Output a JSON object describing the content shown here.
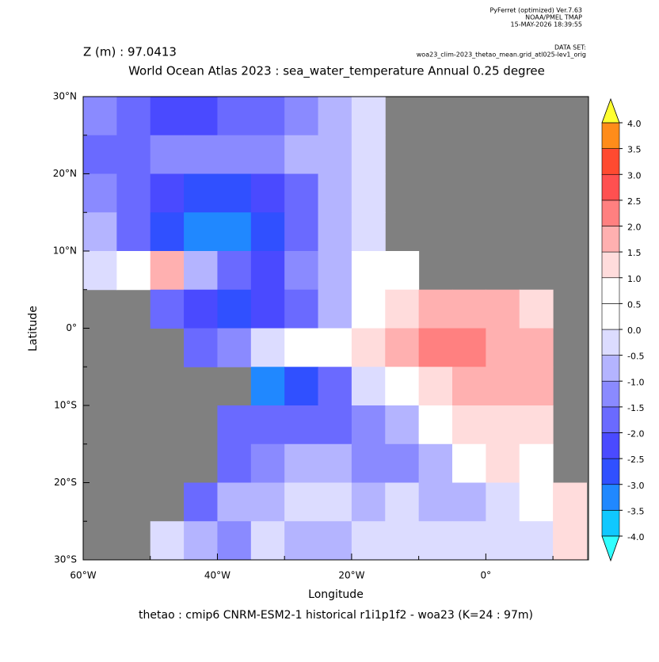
{
  "chart_data": {
    "type": "field",
    "header": {
      "program": "PyFerret (optimized) Ver.7.63",
      "org": "NOAA/PMEL TMAP",
      "date": "15-MAY-2026 18:39:55",
      "dataset_label": "DATA SET:",
      "dataset": "woa23_clim-2023_thetao_mean.grid_atl025-lev1_orig"
    },
    "depth_label": "Z (m) : 97.0413",
    "title": "World Ocean Atlas 2023 : sea_water_temperature Annual  0.25 degree",
    "footer": "thetao : cmip6 CNRM-ESM2-1 historical r1i1p1f2 - woa23  (K=24 : 97m)",
    "x_label": "Longitude",
    "y_label": "Latitude",
    "xlim": [
      -60,
      15.3
    ],
    "ylim": [
      -30,
      30
    ],
    "xticks": [
      {
        "value": -60,
        "label": "60°W"
      },
      {
        "value": -40,
        "label": "40°W"
      },
      {
        "value": -20,
        "label": "20°W"
      },
      {
        "value": 0,
        "label": "0°"
      }
    ],
    "xminorticks": [
      -50,
      -30,
      -10,
      10
    ],
    "yticks": [
      {
        "value": 30,
        "label": "30°N"
      },
      {
        "value": 20,
        "label": "20°N"
      },
      {
        "value": 10,
        "label": "10°N"
      },
      {
        "value": 0,
        "label": "0°"
      },
      {
        "value": -10,
        "label": "10°S"
      },
      {
        "value": -20,
        "label": "20°S"
      },
      {
        "value": -30,
        "label": "30°S"
      }
    ],
    "yminorticks": [
      25,
      15,
      5,
      -5,
      -15,
      -25
    ],
    "land_color": "#808080",
    "field": {
      "lon": [
        -57.5,
        -52.5,
        -47.5,
        -42.5,
        -37.5,
        -32.5,
        -27.5,
        -22.5,
        -17.5,
        -12.5,
        -7.5,
        -2.5,
        2.5,
        7.5,
        12.5
      ],
      "lat": [
        27.5,
        22.5,
        17.5,
        12.5,
        7.5,
        2.5,
        -2.5,
        -7.5,
        -12.5,
        -17.5,
        -22.5,
        -27.5
      ],
      "values": [
        [
          -1.5,
          -2,
          -2.5,
          -2.5,
          -2,
          -2,
          -1.5,
          -1,
          -0.5,
          null,
          null,
          null,
          null,
          null,
          null
        ],
        [
          -2,
          -2,
          -1.5,
          -1.5,
          -1.5,
          -1.5,
          -1,
          -1,
          -0.5,
          null,
          null,
          null,
          null,
          null,
          null
        ],
        [
          -1.5,
          -2,
          -2.5,
          -3,
          -3,
          -2.5,
          -2,
          -1,
          -0.5,
          null,
          null,
          null,
          null,
          null,
          null
        ],
        [
          -1,
          -2,
          -3,
          -3.5,
          -3.5,
          -3,
          -2,
          -1,
          -0.5,
          null,
          null,
          null,
          null,
          null,
          null
        ],
        [
          -0.5,
          0.5,
          1.5,
          -1,
          -2,
          -2.5,
          -1.5,
          -1,
          0,
          0.5,
          null,
          null,
          null,
          null,
          null
        ],
        [
          null,
          null,
          -2,
          -2.5,
          -3,
          -2.5,
          -2,
          -1,
          0.5,
          1,
          1.5,
          1.5,
          1.5,
          1,
          null
        ],
        [
          null,
          null,
          null,
          -2,
          -1.5,
          -0.5,
          0,
          0.5,
          1,
          1.5,
          2,
          2,
          1.5,
          1.5,
          null
        ],
        [
          null,
          null,
          null,
          null,
          null,
          -3.5,
          -3,
          -2,
          -0.5,
          0.5,
          1,
          1.5,
          1.5,
          1.5,
          null
        ],
        [
          null,
          null,
          null,
          null,
          -2,
          -2,
          -2,
          -2,
          -1.5,
          -1,
          0,
          1,
          1,
          1,
          null
        ],
        [
          null,
          null,
          null,
          null,
          -2,
          -1.5,
          -1,
          -1,
          -1.5,
          -1.5,
          -1,
          0,
          1,
          0.5,
          null
        ],
        [
          null,
          null,
          null,
          -2,
          -1,
          -1,
          -0.5,
          -0.5,
          -1,
          -0.5,
          -1,
          -1,
          -0.5,
          0,
          1
        ],
        [
          null,
          null,
          -0.5,
          -1,
          -1.5,
          -0.5,
          -1,
          -1,
          -0.5,
          -0.5,
          -0.5,
          -0.5,
          -0.5,
          -0.5,
          1
        ]
      ]
    },
    "colorbar": {
      "levels": [
        {
          "value": -4,
          "label": "-4.0"
        },
        -3.5,
        {
          "value": -3,
          "label": "-3.0"
        },
        -2.5,
        {
          "value": -2,
          "label": "-2.0"
        },
        -1.5,
        {
          "value": -1,
          "label": "-1.0"
        },
        -0.5,
        {
          "value": 0,
          "label": "0.0"
        },
        0.5,
        {
          "value": 1,
          "label": "1.0"
        },
        1.5,
        {
          "value": 2,
          "label": "2.0"
        },
        2.5,
        {
          "value": 3,
          "label": "3.0"
        },
        3.5,
        {
          "value": 4,
          "label": "4.0"
        }
      ],
      "colors": [
        "#10c8ff",
        "#2088ff",
        "#3050ff",
        "#4a4aff",
        "#6a6aff",
        "#8a8aff",
        "#b4b4ff",
        "#dcdcff",
        "#ffffff",
        "#ffffff",
        "#ffdcdc",
        "#ffb0b0",
        "#ff8080",
        "#ff5050",
        "#ff4a30",
        "#ff8c1a",
        "#ffb020"
      ],
      "under_color": "#30ffff",
      "over_color": "#ffff30"
    }
  }
}
